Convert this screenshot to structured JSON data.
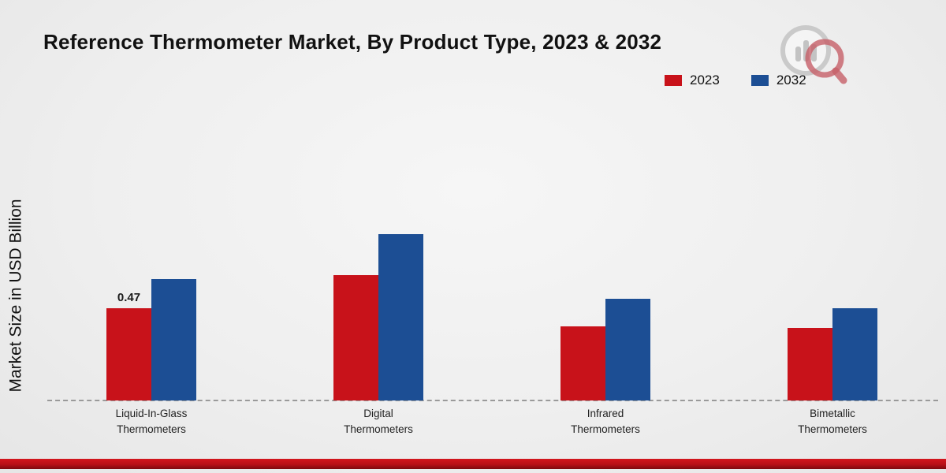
{
  "chart_data": {
    "type": "bar",
    "title": "Reference Thermometer Market, By Product Type, 2023 & 2032",
    "ylabel": "Market Size in USD Billion",
    "xlabel": "",
    "categories": [
      "Liquid-In-Glass\nThermometers",
      "Digital\nThermometers",
      "Infrared\nThermometers",
      "Bimetallic\nThermometers"
    ],
    "series": [
      {
        "name": "2023",
        "color": "#c8121a",
        "values": [
          0.47,
          0.64,
          0.38,
          0.37
        ]
      },
      {
        "name": "2032",
        "color": "#1c4e94",
        "values": [
          0.62,
          0.85,
          0.52,
          0.47
        ]
      }
    ],
    "annotations": [
      {
        "series": "2023",
        "category_index": 0,
        "text": "0.47"
      }
    ],
    "ylim": [
      0,
      1.0
    ],
    "grid": false,
    "legend_position": "top-right",
    "accent_colors": {
      "banner_red": "#c8121a",
      "baseline_gray": "#9a9a9a"
    }
  }
}
